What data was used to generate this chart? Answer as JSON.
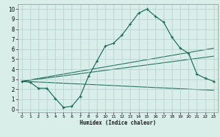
{
  "xlabel": "Humidex (Indice chaleur)",
  "x_ticks": [
    0,
    1,
    2,
    3,
    4,
    5,
    6,
    7,
    8,
    9,
    10,
    11,
    12,
    13,
    14,
    15,
    16,
    17,
    18,
    19,
    20,
    21,
    22,
    23
  ],
  "y_ticks": [
    0,
    1,
    2,
    3,
    4,
    5,
    6,
    7,
    8,
    9,
    10
  ],
  "xlim": [
    -0.5,
    23.5
  ],
  "ylim": [
    -0.3,
    10.5
  ],
  "bg_color": "#d9eee9",
  "grid_color": "#b0ccc8",
  "line_color": "#1a6b5a",
  "main_curve_x": [
    0,
    1,
    2,
    3,
    4,
    5,
    6,
    7,
    8,
    9,
    10,
    11,
    12,
    13,
    14,
    15,
    16,
    17,
    18,
    19,
    20,
    21,
    22,
    23
  ],
  "main_curve_y": [
    2.8,
    2.7,
    2.1,
    2.1,
    1.1,
    0.2,
    0.3,
    1.3,
    3.3,
    4.8,
    6.3,
    6.6,
    7.4,
    8.5,
    9.6,
    10.0,
    9.3,
    8.7,
    7.2,
    6.1,
    5.6,
    3.5,
    3.1,
    2.8
  ],
  "line1_x": [
    0,
    23
  ],
  "line1_y": [
    2.8,
    6.1
  ],
  "line2_x": [
    0,
    23
  ],
  "line2_y": [
    2.8,
    5.3
  ],
  "line3_x": [
    0,
    23
  ],
  "line3_y": [
    2.8,
    1.9
  ]
}
